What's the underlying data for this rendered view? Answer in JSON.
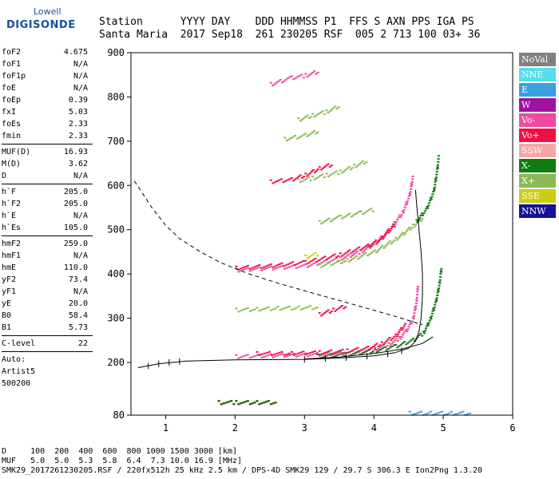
{
  "logo": {
    "line1": "Lowell",
    "line2": "DIGISONDE"
  },
  "header": {
    "labels": "Station      YYYY DAY    DDD HHMMSS P1  FFS S AXN PPS IGA PS",
    "values": "Santa Maria  2017 Sep18  261 230205 RSF  005 2 713 100 03+ 36"
  },
  "params": {
    "group1": [
      {
        "k": "foF2",
        "v": "4.675"
      },
      {
        "k": "foF1",
        "v": "N/A"
      },
      {
        "k": "foF1p",
        "v": "N/A"
      },
      {
        "k": "foE",
        "v": "N/A"
      },
      {
        "k": "foEp",
        "v": "0.39"
      },
      {
        "k": "fxI",
        "v": "5.03"
      },
      {
        "k": "foEs",
        "v": "2.33"
      },
      {
        "k": "fmin",
        "v": "2.33"
      }
    ],
    "group2": [
      {
        "k": "MUF(D)",
        "v": "16.93"
      },
      {
        "k": "M(D)",
        "v": "3.62"
      },
      {
        "k": "D",
        "v": "N/A"
      }
    ],
    "group3": [
      {
        "k": "h`F",
        "v": "205.0"
      },
      {
        "k": "h`F2",
        "v": "205.0"
      },
      {
        "k": "h`E",
        "v": "N/A"
      },
      {
        "k": "h`Es",
        "v": "105.0"
      }
    ],
    "group4": [
      {
        "k": "hmF2",
        "v": "259.0"
      },
      {
        "k": "hmF1",
        "v": "N/A"
      },
      {
        "k": "hmE",
        "v": "110.0"
      },
      {
        "k": "yF2",
        "v": "73.4"
      },
      {
        "k": "yF1",
        "v": "N/A"
      },
      {
        "k": "yE",
        "v": "20.0"
      },
      {
        "k": "B0",
        "v": "58.4"
      },
      {
        "k": "B1",
        "v": "5.73"
      }
    ],
    "group5": [
      {
        "k": "C-level",
        "v": "22"
      }
    ],
    "auto": [
      "Auto:",
      "Artist5",
      "500200"
    ]
  },
  "legend": [
    {
      "label": "NoVal",
      "color": "#808080"
    },
    {
      "label": "NNE",
      "color": "#55ddee"
    },
    {
      "label": "E",
      "color": "#3aa0e0"
    },
    {
      "label": "W",
      "color": "#a0129e"
    },
    {
      "label": "Vo-",
      "color": "#ee4aa0"
    },
    {
      "label": "Vo+",
      "color": "#ee1144"
    },
    {
      "label": "SSW",
      "color": "#f6a6a6"
    },
    {
      "label": "X-",
      "color": "#117a11"
    },
    {
      "label": "X+",
      "color": "#88bb55"
    },
    {
      "label": "SSE",
      "color": "#cccc11"
    },
    {
      "label": "NNW",
      "color": "#121299"
    }
  ],
  "bottom": {
    "line1": "D     100  200  400  600  800 1000 1500 3000 [km]",
    "line2": "MUF   5.0  5.0  5.3  5.8  6.4  7.3 10.0 16.9 [MHz]",
    "line3": "SMK29_2017261230205.RSF / 220fx512h 25 kHz 2.5 km / DPS-4D SMK29 129 / 29.7 S 306.3 E Ion2Png 1.3.20"
  },
  "chart_data": {
    "type": "scatter",
    "xlim": [
      0.5,
      6.0
    ],
    "ylim": [
      80,
      900
    ],
    "xticks": [
      "1",
      "2",
      "3",
      "4",
      "5",
      "6"
    ],
    "yticks": [
      "80",
      "200",
      "300",
      "400",
      "500",
      "600",
      "700",
      "800",
      "900"
    ],
    "traces": [
      {
        "color": "Vo-",
        "pts": [
          [
            2.0,
            215
          ],
          [
            2.5,
            217
          ],
          [
            3.0,
            219
          ],
          [
            3.5,
            222
          ],
          [
            3.8,
            226
          ],
          [
            4.0,
            232
          ],
          [
            4.2,
            242
          ],
          [
            4.35,
            256
          ],
          [
            4.45,
            272
          ],
          [
            4.55,
            300
          ],
          [
            4.6,
            340
          ],
          [
            4.62,
            380
          ]
        ]
      },
      {
        "color": "Vo+",
        "pts": [
          [
            2.3,
            222
          ],
          [
            2.8,
            222
          ],
          [
            3.2,
            224
          ],
          [
            3.6,
            228
          ],
          [
            3.9,
            234
          ],
          [
            4.1,
            244
          ],
          [
            4.3,
            262
          ],
          [
            4.45,
            290
          ]
        ]
      },
      {
        "color": "X-",
        "pts": [
          [
            3.2,
            216
          ],
          [
            3.6,
            220
          ],
          [
            4.0,
            228
          ],
          [
            4.3,
            238
          ],
          [
            4.55,
            252
          ],
          [
            4.7,
            268
          ],
          [
            4.8,
            300
          ],
          [
            4.88,
            340
          ],
          [
            4.93,
            380
          ],
          [
            4.96,
            420
          ]
        ]
      },
      {
        "color": "Vo-",
        "pts": [
          [
            2.0,
            410
          ],
          [
            2.5,
            415
          ],
          [
            3.0,
            420
          ],
          [
            3.5,
            436
          ],
          [
            3.8,
            452
          ],
          [
            4.0,
            470
          ],
          [
            4.2,
            500
          ],
          [
            4.4,
            540
          ],
          [
            4.5,
            580
          ],
          [
            4.55,
            625
          ]
        ]
      },
      {
        "color": "Vo+",
        "pts": [
          [
            2.0,
            415
          ],
          [
            2.5,
            420
          ],
          [
            3.0,
            428
          ],
          [
            3.5,
            445
          ],
          [
            3.9,
            465
          ],
          [
            4.1,
            482
          ],
          [
            4.3,
            515
          ]
        ]
      },
      {
        "color": "X+",
        "pts": [
          [
            3.2,
            420
          ],
          [
            3.6,
            432
          ],
          [
            4.0,
            452
          ],
          [
            4.3,
            480
          ],
          [
            4.55,
            510
          ],
          [
            4.7,
            530
          ]
        ]
      },
      {
        "color": "X-",
        "pts": [
          [
            4.6,
            520
          ],
          [
            4.75,
            550
          ],
          [
            4.85,
            590
          ],
          [
            4.9,
            640
          ],
          [
            4.92,
            670
          ]
        ]
      },
      {
        "color": "Vo+",
        "pts": [
          [
            2.5,
            610
          ],
          [
            2.8,
            615
          ],
          [
            3.0,
            625
          ],
          [
            3.2,
            640
          ],
          [
            3.4,
            650
          ]
        ]
      },
      {
        "color": "X+",
        "pts": [
          [
            2.9,
            612
          ],
          [
            3.1,
            618
          ],
          [
            3.3,
            625
          ],
          [
            3.5,
            632
          ],
          [
            3.7,
            645
          ],
          [
            3.9,
            658
          ]
        ]
      },
      {
        "color": "Vo-",
        "pts": [
          [
            2.5,
            830
          ],
          [
            2.8,
            845
          ],
          [
            3.0,
            850
          ],
          [
            3.2,
            860
          ]
        ]
      },
      {
        "color": "X+",
        "pts": [
          [
            2.9,
            750
          ],
          [
            3.1,
            760
          ],
          [
            3.3,
            768
          ],
          [
            3.5,
            782
          ]
        ]
      },
      {
        "color": "X+",
        "pts": [
          [
            3.2,
            518
          ],
          [
            3.5,
            530
          ],
          [
            3.8,
            540
          ],
          [
            4.0,
            548
          ]
        ]
      },
      {
        "color": "Vo+",
        "pts": [
          [
            3.2,
            310
          ],
          [
            3.4,
            320
          ],
          [
            3.6,
            330
          ]
        ]
      },
      {
        "color": "X+",
        "pts": [
          [
            2.0,
            320
          ],
          [
            2.3,
            322
          ],
          [
            2.6,
            324
          ],
          [
            2.9,
            325
          ],
          [
            3.2,
            326
          ]
        ]
      },
      {
        "color": "Vo+",
        "pts": [
          [
            1.75,
            110
          ],
          [
            2.0,
            110
          ],
          [
            2.3,
            110
          ],
          [
            2.6,
            110
          ]
        ]
      },
      {
        "color": "X-",
        "pts": [
          [
            1.75,
            111
          ],
          [
            2.0,
            111
          ],
          [
            2.3,
            111
          ],
          [
            2.6,
            111
          ]
        ]
      },
      {
        "color": "E",
        "pts": [
          [
            4.5,
            86
          ],
          [
            4.8,
            86
          ],
          [
            5.1,
            86
          ],
          [
            5.4,
            86
          ]
        ]
      },
      {
        "color": "X+",
        "pts": [
          [
            2.7,
            706
          ],
          [
            3.0,
            715
          ],
          [
            3.2,
            725
          ]
        ]
      },
      {
        "color": "SSE",
        "pts": [
          [
            3.0,
            440
          ],
          [
            3.2,
            448
          ]
        ]
      }
    ],
    "profile": [
      [
        0.6,
        188
      ],
      [
        0.9,
        197
      ],
      [
        1.3,
        203
      ],
      [
        2.0,
        206
      ],
      [
        3.0,
        207
      ],
      [
        3.5,
        210
      ],
      [
        4.0,
        215
      ],
      [
        4.3,
        222
      ],
      [
        4.5,
        232
      ],
      [
        4.6,
        248
      ],
      [
        4.65,
        270
      ],
      [
        4.68,
        300
      ],
      [
        4.7,
        350
      ],
      [
        4.7,
        400
      ],
      [
        4.68,
        450
      ],
      [
        4.65,
        500
      ],
      [
        4.62,
        550
      ],
      [
        4.6,
        590
      ]
    ],
    "mufcurve": [
      [
        0.55,
        610
      ],
      [
        0.8,
        550
      ],
      [
        1.0,
        510
      ],
      [
        1.2,
        480
      ],
      [
        1.5,
        450
      ],
      [
        1.8,
        425
      ],
      [
        2.2,
        400
      ],
      [
        2.6,
        380
      ],
      [
        3.0,
        362
      ],
      [
        3.5,
        340
      ],
      [
        4.0,
        318
      ],
      [
        4.4,
        300
      ],
      [
        4.7,
        285
      ]
    ],
    "xcurve": [
      [
        3.0,
        208
      ],
      [
        3.5,
        212
      ],
      [
        4.0,
        220
      ],
      [
        4.4,
        230
      ],
      [
        4.7,
        243
      ],
      [
        4.85,
        258
      ]
    ],
    "error_ticks": [
      [
        0.75,
        192
      ],
      [
        0.9,
        197
      ],
      [
        1.05,
        200
      ],
      [
        1.2,
        202
      ],
      [
        3.0,
        207
      ],
      [
        3.3,
        209
      ],
      [
        3.6,
        211
      ],
      [
        3.9,
        214
      ],
      [
        4.2,
        219
      ],
      [
        4.4,
        226
      ]
    ]
  }
}
